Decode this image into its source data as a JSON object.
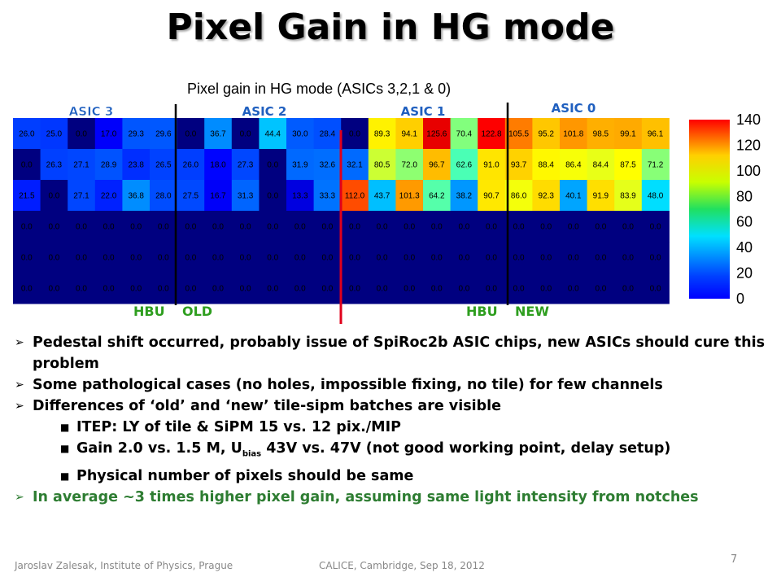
{
  "slide": {
    "title": "Pixel Gain in HG mode",
    "page_number": "7",
    "footer_left": "Jaroslav Zalesak, Institute of Physics, Prague",
    "footer_mid": "CALICE, Cambridge, Sep 18, 2012"
  },
  "figure": {
    "asic_labels": [
      "ASIC 3",
      "ASIC 2",
      "ASIC 1",
      "ASIC 0"
    ],
    "hbu_old": {
      "hbu": "HBU",
      "tag": "OLD"
    },
    "hbu_new": {
      "hbu": "HBU",
      "tag": "NEW"
    }
  },
  "chart_data": {
    "type": "heatmap",
    "title": "Pixel gain in HG mode (ASICs 3,2,1 & 0)",
    "zlim": [
      0,
      140
    ],
    "colorbar_ticks": [
      0,
      20,
      40,
      60,
      80,
      100,
      120,
      140
    ],
    "colormap": "jet",
    "rows": [
      [
        "26.0",
        "25.0",
        "0.0",
        "17.0",
        "29.3",
        "29.6",
        "0.0",
        "36.7",
        "0.0",
        "44.4",
        "30.0",
        "28.4",
        "0.0",
        "89.3",
        "94.1",
        "125.6",
        "70.4",
        "122.8",
        "105.5",
        "95.2",
        "101.8",
        "98.5",
        "99.1",
        "96.1"
      ],
      [
        "0.0",
        "26.3",
        "27.1",
        "28.9",
        "23.8",
        "26.5",
        "26.0",
        "18.0",
        "27.3",
        "0.0",
        "31.9",
        "32.6",
        "32.1",
        "80.5",
        "72.0",
        "96.7",
        "62.6",
        "91.0",
        "93.7",
        "88.4",
        "86.4",
        "84.4",
        "87.5",
        "71.2"
      ],
      [
        "21.5",
        "0.0",
        "27.1",
        "22.0",
        "36.8",
        "28.0",
        "27.5",
        "16.7",
        "31.3",
        "0.0",
        "13.3",
        "33.3",
        "112.0",
        "43.7",
        "101.3",
        "64.2",
        "38.2",
        "90.7",
        "86.0",
        "92.3",
        "40.1",
        "91.9",
        "83.9",
        "48.0"
      ],
      [
        "0.0",
        "0.0",
        "0.0",
        "0.0",
        "0.0",
        "0.0",
        "0.0",
        "0.0",
        "0.0",
        "0.0",
        "0.0",
        "0.0",
        "0.0",
        "0.0",
        "0.0",
        "0.0",
        "0.0",
        "0.0",
        "0.0",
        "0.0",
        "0.0",
        "0.0",
        "0.0",
        "0.0"
      ],
      [
        "0.0",
        "0.0",
        "0.0",
        "0.0",
        "0.0",
        "0.0",
        "0.0",
        "0.0",
        "0.0",
        "0.0",
        "0.0",
        "0.0",
        "0.0",
        "0.0",
        "0.0",
        "0.0",
        "0.0",
        "0.0",
        "0.0",
        "0.0",
        "0.0",
        "0.0",
        "0.0",
        "0.0"
      ],
      [
        "0.0",
        "0.0",
        "0.0",
        "0.0",
        "0.0",
        "0.0",
        "0.0",
        "0.0",
        "0.0",
        "0.0",
        "0.0",
        "0.0",
        "0.0",
        "0.0",
        "0.0",
        "0.0",
        "0.0",
        "0.0",
        "0.0",
        "0.0",
        "0.0",
        "0.0",
        "0.0",
        "0.0"
      ]
    ]
  },
  "bullets": [
    {
      "text": "Pedestal shift occurred, probably issue of SpiRoc2b ASIC chips, new ASICs should cure this problem"
    },
    {
      "text": "Some pathological cases (no holes, impossible fixing, no tile)  for few channels"
    },
    {
      "text": "Differences of ‘old’ and ‘new’ tile-sipm batches are visible",
      "sub": [
        {
          "text": "ITEP: LY of tile & SiPM 15 vs. 12 pix./MIP"
        },
        {
          "pre": "Gain 2.0 vs. 1.5 M, U",
          "subscript": "bias",
          "post": " 43V vs. 47V (not good working point, delay setup)"
        },
        {
          "text": "Physical number of pixels should be same"
        }
      ]
    },
    {
      "text": "In average ~3 times higher pixel gain, assuming same light intensity from notches"
    }
  ],
  "colors": {
    "divider_black": "#000000",
    "divider_red": "#e0001b",
    "asic_label": "#1f5fbf",
    "hbu_label": "#2e9e1f",
    "emphasis_bullet": "#2e7d32"
  }
}
